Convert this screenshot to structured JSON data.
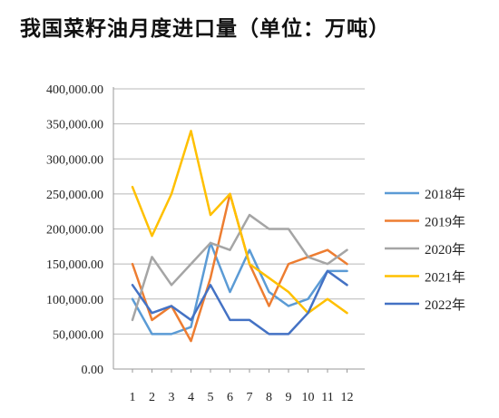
{
  "chart_data": {
    "type": "line",
    "title": "我国菜籽油月度进口量（单位：万吨）",
    "xlabel": "",
    "ylabel": "",
    "categories": [
      "1",
      "2",
      "3",
      "4",
      "5",
      "6",
      "7",
      "8",
      "9",
      "10",
      "11",
      "12"
    ],
    "y_tick_labels": [
      "0.00",
      "50,000.00",
      "100,000.00",
      "150,000.00",
      "200,000.00",
      "250,000.00",
      "300,000.00",
      "350,000.00",
      "400,000.00"
    ],
    "ylim": [
      0,
      400000
    ],
    "grid": true,
    "legend_position": "right",
    "series": [
      {
        "name": "2018年",
        "color": "#5b9bd5",
        "values": [
          100000,
          50000,
          50000,
          60000,
          180000,
          110000,
          170000,
          110000,
          90000,
          100000,
          140000,
          140000
        ]
      },
      {
        "name": "2019年",
        "color": "#ed7d31",
        "values": [
          150000,
          70000,
          90000,
          40000,
          130000,
          250000,
          150000,
          90000,
          150000,
          160000,
          170000,
          150000
        ]
      },
      {
        "name": "2020年",
        "color": "#a5a5a5",
        "values": [
          70000,
          160000,
          120000,
          150000,
          180000,
          170000,
          220000,
          200000,
          200000,
          160000,
          150000,
          170000
        ]
      },
      {
        "name": "2021年",
        "color": "#ffc000",
        "values": [
          260000,
          190000,
          250000,
          340000,
          220000,
          250000,
          150000,
          130000,
          110000,
          80000,
          100000,
          80000
        ]
      },
      {
        "name": "2022年",
        "color": "#4472c4",
        "values": [
          120000,
          80000,
          90000,
          70000,
          120000,
          70000,
          70000,
          50000,
          50000,
          80000,
          140000,
          120000
        ]
      }
    ]
  }
}
